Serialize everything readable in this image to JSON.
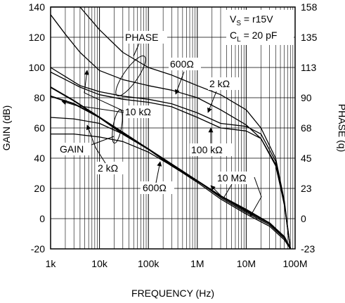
{
  "chart_data": {
    "type": "line",
    "title": "",
    "xlabel": "FREQUENCY (Hz)",
    "ylabel": "GAIN (dB)",
    "y2label": "PHASE (q)",
    "x_scale": "log",
    "xlim": [
      1000,
      100000000
    ],
    "ylim": [
      -20,
      140
    ],
    "y2lim": [
      -23,
      158
    ],
    "grid": true,
    "x_ticks": [
      1000,
      10000,
      100000,
      1000000,
      10000000,
      100000000
    ],
    "x_tick_labels": [
      "1k",
      "10k",
      "100k",
      "1M",
      "10M",
      "100M"
    ],
    "y_tick_labels": [
      "-20",
      "0",
      "20",
      "40",
      "60",
      "80",
      "100",
      "120",
      "140"
    ],
    "y2_tick_labels": [
      "-23",
      "0",
      "23",
      "45",
      "68",
      "90",
      "113",
      "135",
      "158"
    ],
    "conditions": {
      "vs_prefix": "V",
      "vs_sub": "S",
      "vs_value": " = r15V",
      "cl_prefix": "C",
      "cl_sub": "L",
      "cl_value": " = 20 pF"
    },
    "annotations": {
      "phase": "PHASE",
      "gain": "GAIN",
      "phase_600": "600Ω",
      "phase_2k": "2 kΩ",
      "phase_10k": "10 kΩ",
      "phase_100k": "100 kΩ",
      "gain_2k": "2 kΩ",
      "gain_600": "600Ω",
      "gain_10M": "10 MΩ"
    },
    "series": [
      {
        "group": "gain",
        "x": [
          1000,
          3000,
          10000,
          30000,
          100000,
          300000,
          1000000,
          3000000,
          10000000,
          30000000,
          60000000,
          80000000
        ],
        "y": [
          87,
          78,
          67,
          56,
          46,
          35,
          25,
          15,
          6,
          -3,
          -12,
          -20
        ]
      },
      {
        "group": "gain",
        "x": [
          1000,
          3000,
          10000,
          30000,
          100000,
          300000,
          1000000,
          3000000,
          10000000,
          30000000,
          60000000,
          80000000
        ],
        "y": [
          81,
          76,
          67,
          57,
          46,
          36,
          25,
          15,
          5,
          -3,
          -12,
          -20
        ]
      },
      {
        "group": "gain",
        "x": [
          1000,
          3000,
          10000,
          30000,
          100000,
          300000,
          1000000,
          3000000,
          10000000,
          30000000,
          60000000,
          80000000
        ],
        "y": [
          67,
          66,
          63,
          56,
          46,
          36,
          25,
          14,
          4,
          -4,
          -13,
          -20
        ]
      },
      {
        "group": "gain",
        "x": [
          1000,
          3000,
          10000,
          30000,
          100000,
          300000,
          1000000,
          3000000,
          10000000,
          30000000,
          60000000,
          80000000
        ],
        "y": [
          56,
          56,
          54,
          51,
          44,
          35,
          24,
          13,
          3,
          -5,
          -14,
          -20
        ]
      },
      {
        "group": "phase",
        "x": [
          1000,
          2000,
          4000,
          10000,
          30000,
          100000,
          300000,
          1000000,
          3000000,
          10000000,
          20000000,
          40000000,
          60000000,
          80000000
        ],
        "y": [
          135,
          122,
          110,
          98,
          92,
          88,
          85,
          80,
          72,
          62,
          53,
          35,
          10,
          -20
        ]
      },
      {
        "group": "phase",
        "x": [
          1000,
          2000,
          4000,
          10000,
          30000,
          100000,
          300000,
          1000000,
          3000000,
          10000000,
          20000000,
          40000000,
          60000000,
          80000000
        ],
        "y": [
          100,
          94,
          88,
          84,
          81,
          79,
          76,
          70,
          63,
          61,
          56,
          38,
          10,
          -20
        ]
      },
      {
        "group": "phase",
        "x": [
          1000,
          2000,
          4000,
          10000,
          30000,
          100000,
          300000,
          1000000,
          3000000,
          10000000,
          20000000,
          40000000,
          60000000,
          80000000
        ],
        "y": [
          97,
          92,
          87,
          82,
          79,
          77,
          74,
          67,
          60,
          58,
          53,
          36,
          9,
          -20
        ]
      },
      {
        "group": "phase",
        "x": [
          1000,
          2000,
          4000,
          10000,
          30000,
          100000,
          300000,
          1000000,
          3000000,
          10000000,
          20000000,
          40000000,
          60000000,
          80000000
        ],
        "y": [
          140,
          140,
          140,
          125,
          110,
          100,
          95,
          88,
          82,
          72,
          60,
          40,
          12,
          -20
        ]
      }
    ]
  }
}
